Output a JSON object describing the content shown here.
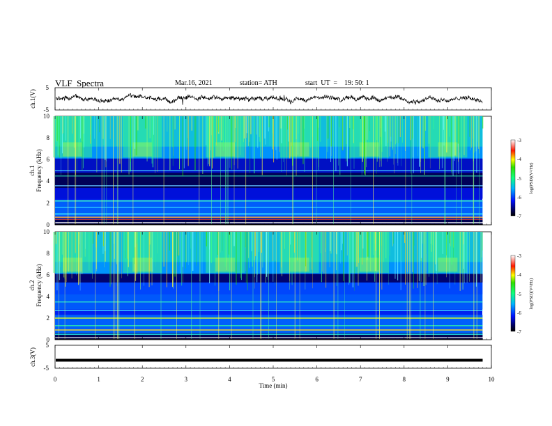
{
  "header": {
    "title": "VLF  Spectra",
    "date": "Mar.16, 2021",
    "station": "station= ATH",
    "start": "start  UT  =    19: 50: 1"
  },
  "chart_data": [
    {
      "type": "line",
      "name": "ch1-waveform",
      "ylabel": "ch.1(V)",
      "ylim": [
        -5,
        5
      ],
      "yticks": [
        "5",
        "-5"
      ],
      "xlim": [
        0,
        10
      ],
      "signal_end_min": 9.8,
      "baseline_v": 0,
      "noise_amplitude_v": 1.5
    },
    {
      "type": "heatmap",
      "name": "ch1-spectrogram",
      "ylabel": "ch.1\nFrequency  (kHz)",
      "ylabel_line1": "ch.1",
      "ylabel_line2": "Frequency  (kHz)",
      "ylim": [
        0,
        10
      ],
      "yticks": [
        "0",
        "2",
        "4",
        "6",
        "8",
        "10"
      ],
      "xlim": [
        0,
        10
      ],
      "signal_end_min": 9.8,
      "colorbar": {
        "label": "log(PSD)(V²/Hz)",
        "range": [
          -7,
          -3
        ],
        "ticks": [
          "-3",
          "-4",
          "-5",
          "-6",
          "-7"
        ]
      },
      "bursts_min": [
        0.4,
        2.0,
        3.9,
        5.6,
        7.2,
        9.0
      ]
    },
    {
      "type": "heatmap",
      "name": "ch2-spectrogram",
      "ylabel": "ch.2\nFrequency  (kHz)",
      "ylabel_line1": "ch.2",
      "ylabel_line2": "Frequency  (kHz)",
      "ylim": [
        0,
        10
      ],
      "yticks": [
        "0",
        "2",
        "4",
        "6",
        "8",
        "10"
      ],
      "xlim": [
        0,
        10
      ],
      "signal_end_min": 9.8,
      "colorbar": {
        "label": "log(PSD)(V²/Hz)",
        "range": [
          -7,
          -3
        ],
        "ticks": [
          "-3",
          "-4",
          "-5",
          "-6",
          "-7"
        ]
      },
      "bursts_min": [
        0.4,
        2.0,
        3.9,
        5.6,
        7.2,
        9.0
      ]
    },
    {
      "type": "line",
      "name": "ch3-waveform",
      "ylabel": "ch.3(V)",
      "ylim": [
        -5,
        5
      ],
      "yticks": [
        "5",
        "-5"
      ],
      "xlim": [
        0,
        10
      ],
      "signal_end_min": 9.8,
      "baseline_v": -1.5,
      "noise_amplitude_v": 0.1
    }
  ],
  "x_axis": {
    "label": "Time  (min)",
    "ticks": [
      "0",
      "1",
      "2",
      "3",
      "4",
      "5",
      "6",
      "7",
      "8",
      "9",
      "10"
    ]
  }
}
